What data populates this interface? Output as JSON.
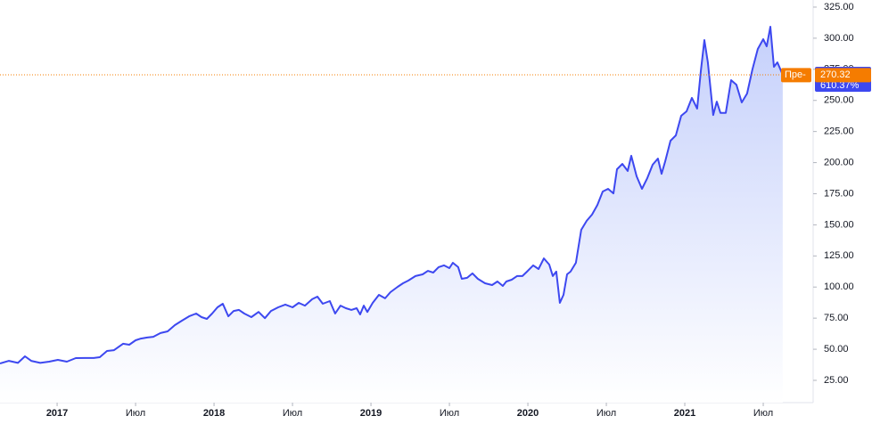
{
  "chart_data": {
    "type": "area",
    "color": "#3d48f0",
    "x": [
      2016.636,
      2016.693,
      2016.75,
      2016.795,
      2016.835,
      2016.892,
      2016.949,
      2017.005,
      2017.062,
      2017.119,
      2017.176,
      2017.233,
      2017.272,
      2017.318,
      2017.363,
      2017.42,
      2017.46,
      2017.5,
      2017.534,
      2017.574,
      2017.613,
      2017.659,
      2017.704,
      2017.75,
      2017.795,
      2017.841,
      2017.886,
      2017.92,
      2017.954,
      2017.988,
      2018.022,
      2018.056,
      2018.091,
      2018.125,
      2018.159,
      2018.193,
      2018.238,
      2018.284,
      2018.324,
      2018.363,
      2018.409,
      2018.454,
      2018.5,
      2018.54,
      2018.579,
      2018.625,
      2018.659,
      2018.693,
      2018.738,
      2018.772,
      2018.806,
      2018.84,
      2018.875,
      2018.909,
      2018.931,
      2018.954,
      2018.977,
      2019.011,
      2019.051,
      2019.09,
      2019.124,
      2019.17,
      2019.204,
      2019.238,
      2019.284,
      2019.329,
      2019.363,
      2019.397,
      2019.431,
      2019.465,
      2019.5,
      2019.522,
      2019.556,
      2019.579,
      2019.613,
      2019.647,
      2019.681,
      2019.727,
      2019.772,
      2019.806,
      2019.84,
      2019.863,
      2019.897,
      2019.931,
      2019.965,
      2019.999,
      2020.034,
      2020.068,
      2020.102,
      2020.136,
      2020.159,
      2020.181,
      2020.204,
      2020.227,
      2020.25,
      2020.272,
      2020.306,
      2020.34,
      2020.375,
      2020.409,
      2020.443,
      2020.477,
      2020.511,
      2020.545,
      2020.568,
      2020.602,
      2020.636,
      2020.659,
      2020.693,
      2020.727,
      2020.761,
      2020.795,
      2020.829,
      2020.852,
      2020.874,
      2020.909,
      2020.943,
      2020.977,
      2021.011,
      2021.045,
      2021.079,
      2021.102,
      2021.125,
      2021.147,
      2021.181,
      2021.204,
      2021.227,
      2021.261,
      2021.295,
      2021.329,
      2021.363,
      2021.397,
      2021.431,
      2021.465,
      2021.5,
      2021.522,
      2021.545,
      2021.568,
      2021.59,
      2021.624
    ],
    "values": [
      38.6,
      40.7,
      39,
      44.3,
      40.7,
      39,
      40,
      41.5,
      40,
      42.9,
      43,
      43,
      43.6,
      48.6,
      49.3,
      54.4,
      53.6,
      57.2,
      58.6,
      59.4,
      60,
      63,
      64.4,
      69.4,
      73,
      76.5,
      78.7,
      75.8,
      74.4,
      78.7,
      83.7,
      86.6,
      76.5,
      80.8,
      81.6,
      78.7,
      75.8,
      80,
      75,
      80.8,
      83.7,
      85.9,
      83.7,
      87.3,
      85.1,
      90.2,
      92.3,
      86.6,
      88.7,
      78.7,
      85.1,
      83,
      81.6,
      83,
      78,
      85.1,
      80,
      87.3,
      93.7,
      90.9,
      95.9,
      100.2,
      103,
      105.2,
      108.8,
      110.2,
      113,
      111.6,
      116,
      117.4,
      115.2,
      119.5,
      116,
      106.6,
      107.4,
      111,
      106.6,
      103,
      101.6,
      104.5,
      100.9,
      104.5,
      105.9,
      108.8,
      108.8,
      113,
      117.4,
      114.5,
      123,
      118.1,
      108.8,
      112.4,
      87.3,
      93.7,
      110.2,
      112.4,
      119.5,
      146,
      153.2,
      158.2,
      166,
      176.8,
      178.9,
      175.3,
      194.7,
      199,
      193.3,
      205.5,
      189,
      178.9,
      187.6,
      198.3,
      203.3,
      191,
      200.6,
      217.6,
      221.9,
      237.6,
      241.2,
      252,
      243.4,
      273.4,
      298.5,
      280.6,
      238.3,
      249,
      240,
      240,
      266.3,
      262.6,
      248.4,
      255.5,
      274.9,
      291.3,
      299.2,
      293.5,
      309.2,
      277,
      280.6,
      270.58
    ],
    "xlim": [
      2016.636,
      2021.818
    ],
    "xticks": [
      {
        "value": 2017,
        "label": "2017"
      },
      {
        "value": 2017.5,
        "label": "Июл"
      },
      {
        "value": 2018,
        "label": "2018"
      },
      {
        "value": 2018.5,
        "label": "Июл"
      },
      {
        "value": 2019,
        "label": "2019"
      },
      {
        "value": 2019.5,
        "label": "Июл"
      },
      {
        "value": 2020,
        "label": "2020"
      },
      {
        "value": 2020.5,
        "label": "Июл"
      },
      {
        "value": 2021,
        "label": "2021"
      },
      {
        "value": 2021.5,
        "label": "Июл"
      }
    ],
    "ylim": [
      7.1,
      330.7
    ],
    "yticks": [
      {
        "value": 25,
        "label": "25.00"
      },
      {
        "value": 50,
        "label": "50.00"
      },
      {
        "value": 75,
        "label": "75.00"
      },
      {
        "value": 100,
        "label": "100.00"
      },
      {
        "value": 125,
        "label": "125.00"
      },
      {
        "value": 150,
        "label": "150.00"
      },
      {
        "value": 175,
        "label": "175.00"
      },
      {
        "value": 200,
        "label": "200.00"
      },
      {
        "value": 225,
        "label": "225.00"
      },
      {
        "value": 250,
        "label": "250.00"
      },
      {
        "value": 275,
        "label": "275.00"
      },
      {
        "value": 300,
        "label": "300.00"
      },
      {
        "value": 325,
        "label": "325.00"
      }
    ],
    "last_change": {
      "value": 610.37,
      "label": "610.37%"
    },
    "premarket_label": "Пре-",
    "premarket_price": 270.32,
    "premarket_color": "#f57c00"
  }
}
